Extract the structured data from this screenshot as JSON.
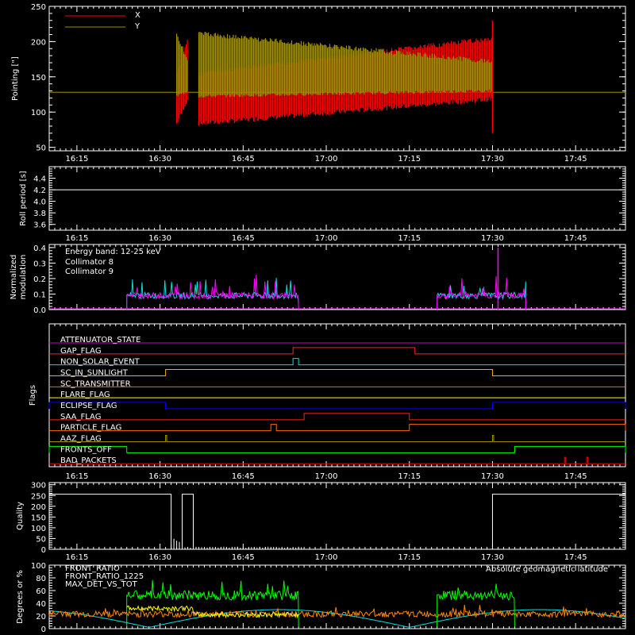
{
  "chart_data": [
    {
      "type": "line",
      "panel": "pointing",
      "ylabel": "Pointing [\"]",
      "ylim": [
        45,
        250
      ],
      "yticks": [
        50,
        100,
        150,
        200,
        250
      ],
      "xlim": [
        "16:10",
        "17:54"
      ],
      "xtick_labels": [
        "16:15",
        "16:30",
        "16:45",
        "17:00",
        "17:15",
        "17:30",
        "17:45"
      ],
      "legend": {
        "placement": "top-left",
        "entries": [
          {
            "name": "X",
            "color": "#ff0000"
          },
          {
            "name": "Y",
            "color": "#a09000"
          }
        ]
      },
      "series": [
        {
          "name": "X",
          "color": "#ff0000",
          "baseline": 128,
          "active_ranges": [
            [
              "16:33",
              "16:35"
            ],
            [
              "16:37",
              "17:30"
            ]
          ],
          "spike": {
            "x": "17:30",
            "y": 230
          }
        },
        {
          "name": "Y",
          "color": "#a09000",
          "baseline": 128,
          "active_ranges": [
            [
              "16:33",
              "16:35"
            ],
            [
              "16:37",
              "17:30"
            ]
          ]
        }
      ]
    },
    {
      "type": "line",
      "panel": "roll",
      "ylabel": "Roll period [s]",
      "ylim": [
        3.5,
        4.6
      ],
      "yticks": [
        3.6,
        3.8,
        4.0,
        4.2,
        4.4
      ],
      "xtick_labels": [
        "16:15",
        "16:30",
        "16:45",
        "17:00",
        "17:15",
        "17:30",
        "17:45"
      ],
      "series": [
        {
          "color": "#ffffff",
          "value": 4.2
        }
      ]
    },
    {
      "type": "line",
      "panel": "modulation",
      "ylabel_lines": [
        "Normalized",
        "modulation"
      ],
      "ylim": [
        0,
        0.42
      ],
      "yticks": [
        0.0,
        0.1,
        0.2,
        0.3,
        0.4
      ],
      "annotation": "Energy band: 12-25 keV",
      "legend": {
        "placement": "top-left",
        "entries": [
          {
            "name": "Collimator 8",
            "color": "#00e0e0"
          },
          {
            "name": "Collimator 9",
            "color": "#ff00ff"
          }
        ]
      },
      "series": [
        {
          "name": "Collimator 8",
          "color": "#00e0e0",
          "active_ranges": [
            [
              "16:24",
              "16:55"
            ],
            [
              "17:20",
              "17:36"
            ]
          ]
        },
        {
          "name": "Collimator 9",
          "color": "#ff00ff",
          "active_ranges": [
            [
              "16:24",
              "16:55"
            ],
            [
              "17:20",
              "17:36"
            ]
          ],
          "spike": {
            "x": "17:31",
            "y": 0.4
          }
        }
      ]
    },
    {
      "type": "line",
      "panel": "flags",
      "ylabel": "Flags",
      "flags": [
        {
          "name": "ATTENUATOR_STATE",
          "color": "#c000c0",
          "on": []
        },
        {
          "name": "GAP_FLAG",
          "color": "#ff2020",
          "on": [
            [
              "16:54",
              "17:16"
            ]
          ]
        },
        {
          "name": "NON_SOLAR_EVENT",
          "color": "#00e0e0",
          "on": [
            [
              "16:54",
              "16:55"
            ]
          ]
        },
        {
          "name": "SC_IN_SUNLIGHT",
          "color": "#ffaa00",
          "on": [
            [
              "16:31",
              "17:30"
            ]
          ]
        },
        {
          "name": "SC_TRANSMITTER",
          "color": "#ff6600",
          "on": []
        },
        {
          "name": "FLARE_FLAG",
          "color": "#ffff00",
          "on": []
        },
        {
          "name": "ECLIPSE_FLAG",
          "color": "#0000ff",
          "on": [
            [
              "16:10",
              "16:31"
            ],
            [
              "17:30",
              "17:54"
            ]
          ]
        },
        {
          "name": "SAA_FLAG",
          "color": "#ff2020",
          "on": [
            [
              "16:56",
              "17:15"
            ]
          ]
        },
        {
          "name": "PARTICLE_FLAG",
          "color": "#ff6600",
          "on": [
            [
              "16:50",
              "16:51"
            ],
            [
              "17:15",
              "17:54"
            ]
          ]
        },
        {
          "name": "AAZ_FLAG",
          "color": "#a09000",
          "on": [
            [
              "16:31",
              "16:31"
            ],
            [
              "17:30",
              "17:30"
            ]
          ]
        },
        {
          "name": "FRONTS_OFF",
          "color": "#00ff00",
          "on": [
            [
              "16:10",
              "16:24"
            ],
            [
              "17:34",
              "17:54"
            ]
          ]
        },
        {
          "name": "BAD_PACKETS",
          "color": "#ff0000",
          "on": [
            [
              "17:43",
              "17:43"
            ],
            [
              "17:47",
              "17:47"
            ]
          ]
        }
      ]
    },
    {
      "type": "line",
      "panel": "quality",
      "ylabel": "Quality",
      "ylim": [
        0,
        310
      ],
      "yticks": [
        0,
        50,
        100,
        150,
        200,
        250,
        300
      ],
      "xtick_labels": [
        "16:15",
        "16:30",
        "16:45",
        "17:00",
        "17:15",
        "17:30",
        "17:45"
      ],
      "series": [
        {
          "color": "#ffffff",
          "high": 256,
          "high_ranges": [
            [
              "16:10",
              "16:32"
            ],
            [
              "16:34",
              "16:36"
            ],
            [
              "17:30",
              "17:54"
            ]
          ]
        }
      ]
    },
    {
      "type": "line",
      "panel": "ratios",
      "ylabel": "Degrees or %",
      "ylim": [
        0,
        100
      ],
      "yticks": [
        0,
        20,
        40,
        60,
        80,
        100
      ],
      "legend": {
        "placement": "top-left",
        "entries": [
          {
            "name": "FRONT_RATIO",
            "color": "#ffff00"
          },
          {
            "name": "FRONT_RATIO_1225",
            "color": "#00ff00"
          },
          {
            "name": "MAX_DET_VS_TOT",
            "color": "#ff8800"
          }
        ]
      },
      "annotation": "Absolute geomagnetic latitude",
      "annotation_color": "#00e0e0",
      "series": [
        {
          "name": "FRONT_RATIO_1225",
          "color": "#00ff00",
          "active_ranges": [
            [
              "16:24",
              "16:55"
            ],
            [
              "17:20",
              "17:34"
            ]
          ]
        },
        {
          "name": "FRONT_RATIO",
          "color": "#ffff00",
          "active_ranges": [
            [
              "16:24",
              "16:55"
            ]
          ]
        },
        {
          "name": "MAX_DET_VS_TOT",
          "color": "#ff8800"
        },
        {
          "name": "Absolute geomagnetic latitude",
          "color": "#00e0e0"
        }
      ]
    }
  ]
}
